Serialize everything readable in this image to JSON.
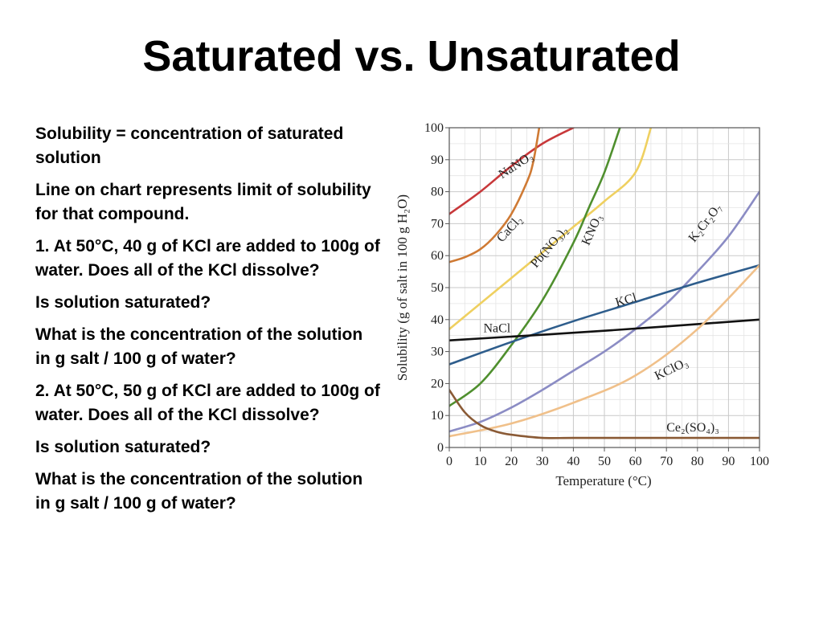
{
  "slide": {
    "title": "Saturated vs. Unsaturated",
    "paragraphs": [
      "Solubility = concentration of saturated solution",
      "Line on chart represents limit of solubility for that compound.",
      "1.  At 50°C, 40 g of KCl are added to 100g of water.  Does all of the KCl dissolve?",
      "Is solution saturated?",
      "What is the concentration of the solution in g salt / 100 g of water?",
      "2.  At 50°C, 50 g of KCl are added to 100g of water. Does all of the KCl dissolve?",
      "Is solution saturated?",
      "What is the concentration of the solution in g salt / 100 g of water?"
    ]
  },
  "chart_data": {
    "type": "line",
    "xlabel": "Temperature (°C)",
    "ylabel": "Solubility (g of salt in 100 g H₂O)",
    "xlim": [
      0,
      100
    ],
    "ylim": [
      0,
      100
    ],
    "xticks": [
      "0",
      "10",
      "20",
      "30",
      "40",
      "50",
      "60",
      "70",
      "80",
      "90",
      "100"
    ],
    "yticks": [
      "0",
      "10",
      "20",
      "30",
      "40",
      "50",
      "60",
      "70",
      "80",
      "90",
      "100"
    ],
    "grid": true,
    "series": [
      {
        "name": "NaNO₃",
        "color": "#c8383a",
        "x": [
          0,
          10,
          20,
          30,
          40
        ],
        "y": [
          73,
          80,
          88,
          95,
          100
        ]
      },
      {
        "name": "CaCl₂",
        "color": "#cf7a34",
        "x": [
          0,
          5,
          10,
          15,
          20,
          25,
          27,
          29
        ],
        "y": [
          58,
          59.5,
          62,
          66.5,
          73,
          83,
          89,
          100
        ]
      },
      {
        "name": "Pb(NO₃)₂",
        "color": "#efd060",
        "x": [
          0,
          10,
          20,
          30,
          40,
          50,
          60,
          65
        ],
        "y": [
          37,
          45,
          53,
          61,
          69,
          77,
          86,
          100
        ]
      },
      {
        "name": "KNO₃",
        "color": "#4f8f2e",
        "x": [
          0,
          10,
          20,
          30,
          40,
          45,
          50,
          55
        ],
        "y": [
          13,
          20,
          32,
          46,
          64,
          75,
          86,
          100
        ]
      },
      {
        "name": "K₂Cr₂O₇",
        "color": "#8b8cc4",
        "x": [
          0,
          10,
          20,
          30,
          40,
          50,
          60,
          70,
          80,
          90,
          100
        ],
        "y": [
          5,
          8,
          12.5,
          18,
          24,
          30,
          37,
          45,
          55,
          66,
          80
        ]
      },
      {
        "name": "KCl",
        "color": "#2e5d8c",
        "x": [
          0,
          20,
          40,
          60,
          80,
          100
        ],
        "y": [
          26,
          33,
          39.5,
          45.5,
          51.5,
          57
        ]
      },
      {
        "name": "NaCl",
        "color": "#111111",
        "x": [
          0,
          50,
          100
        ],
        "y": [
          33.5,
          36.5,
          40
        ]
      },
      {
        "name": "KClO₃",
        "color": "#f0c08a",
        "x": [
          0,
          20,
          40,
          60,
          80,
          100
        ],
        "y": [
          3.5,
          7.5,
          14,
          22.5,
          37,
          57
        ]
      },
      {
        "name": "Ce₂(SO₄)₃",
        "color": "#8a5a35",
        "x": [
          0,
          5,
          10,
          15,
          20,
          30,
          40,
          60,
          80,
          100
        ],
        "y": [
          18,
          11,
          7,
          5,
          4,
          3,
          3,
          3,
          3,
          3
        ]
      }
    ]
  }
}
